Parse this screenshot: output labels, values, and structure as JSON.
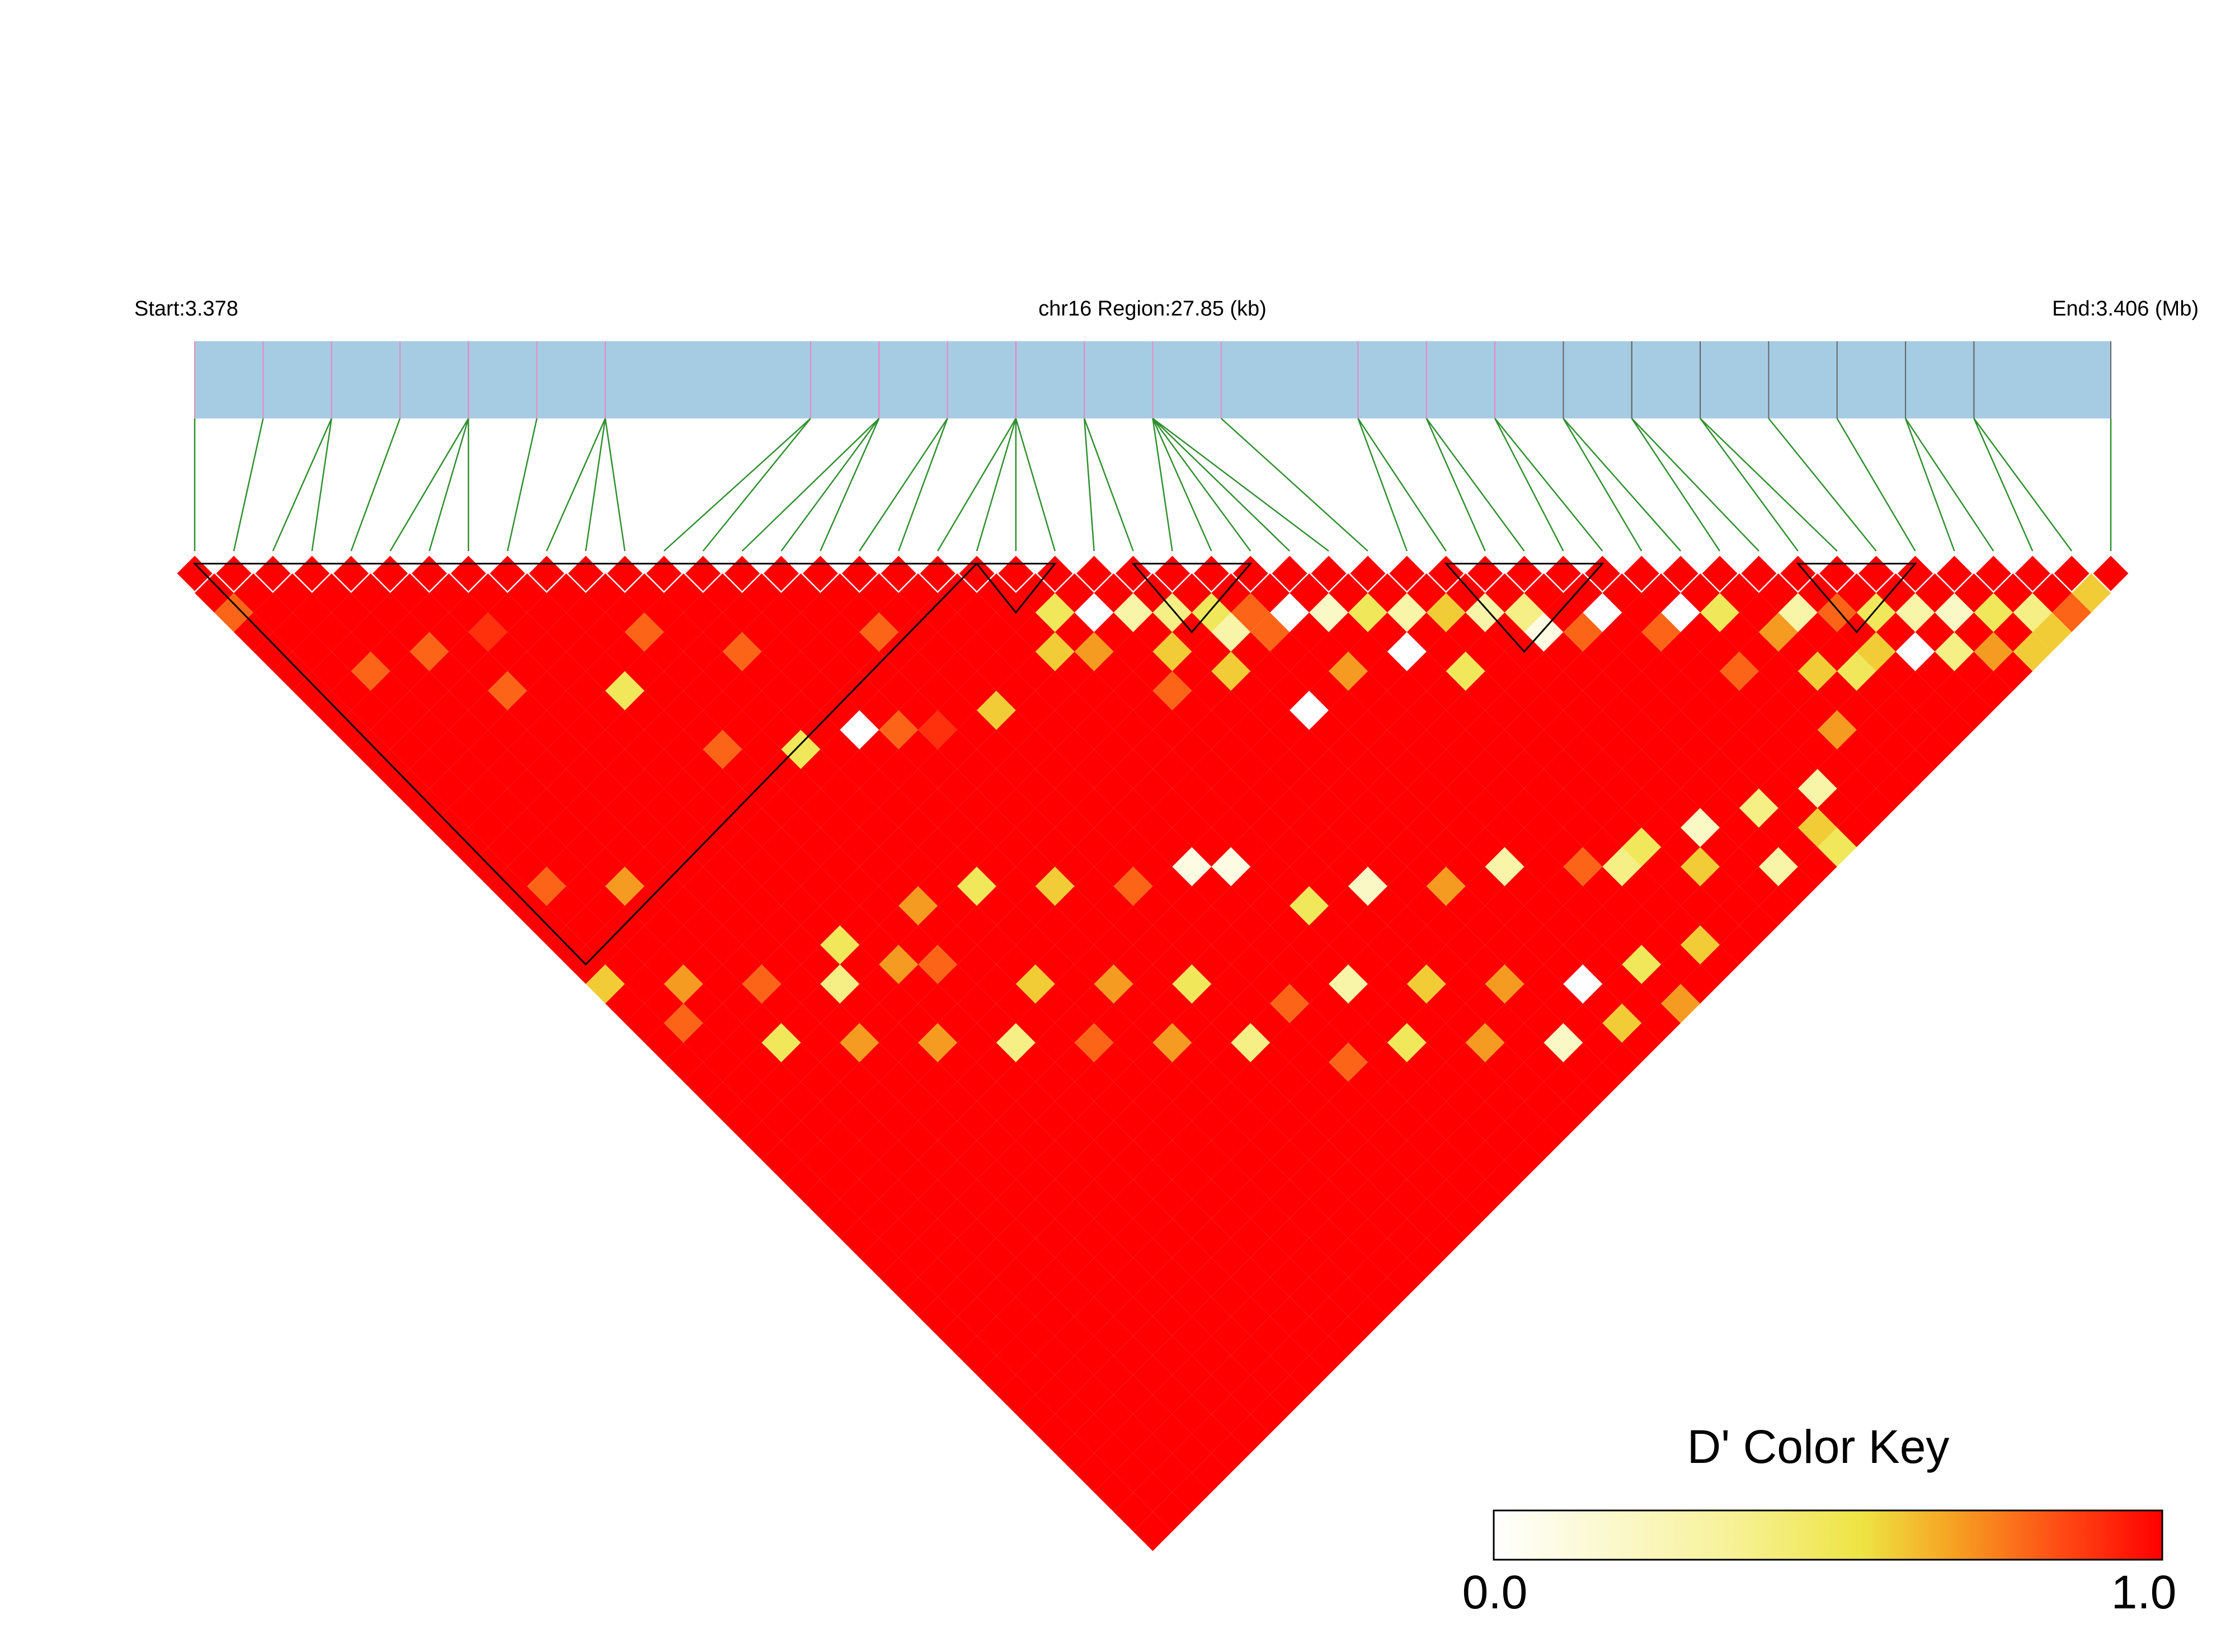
{
  "header": {
    "start_label": "Start:3.378",
    "region_label": "chr16 Region:27.85 (kb)",
    "end_label": "End:3.406 (Mb)"
  },
  "colors": {
    "track_fill": "#a6cce3",
    "snp_tick_pink": "#e889c4",
    "snp_tick_gray": "#666666",
    "connector": "#2f8f2f",
    "block_outline": "#000000",
    "scale": [
      "#ffffff",
      "#f2eb4c",
      "#f5a623",
      "#ff0000"
    ]
  },
  "chart_data": {
    "type": "heatmap",
    "title": "",
    "region": {
      "chromosome": "chr16",
      "start_mb": 3.378,
      "end_mb": 3.406,
      "length_kb": 27.85
    },
    "snp_count": 50,
    "snp_positions_mb": [
      3.378,
      3.379,
      3.38,
      3.38,
      3.381,
      3.382,
      3.382,
      3.382,
      3.383,
      3.384,
      3.384,
      3.384,
      3.387,
      3.387,
      3.388,
      3.388,
      3.388,
      3.389,
      3.389,
      3.39,
      3.39,
      3.39,
      3.39,
      3.391,
      3.391,
      3.392,
      3.392,
      3.392,
      3.392,
      3.392,
      3.393,
      3.395,
      3.395,
      3.396,
      3.396,
      3.397,
      3.397,
      3.398,
      3.398,
      3.399,
      3.399,
      3.4,
      3.4,
      3.401,
      3.402,
      3.403,
      3.403,
      3.404,
      3.404,
      3.406
    ],
    "ld_blocks": [
      {
        "first_snp": 1,
        "last_snp": 21
      },
      {
        "first_snp": 21,
        "last_snp": 23
      },
      {
        "first_snp": 25,
        "last_snp": 28
      },
      {
        "first_snp": 33,
        "last_snp": 37
      },
      {
        "first_snp": 42,
        "last_snp": 45
      }
    ],
    "color_key": {
      "title": "D' Color Key",
      "min_label": "0.0",
      "max_label": "1.0",
      "min": 0.0,
      "max": 1.0
    },
    "dprime_default": 1.0,
    "dprime_low_pairs": [
      [
        1,
        3,
        0.8
      ],
      [
        3,
        8,
        0.8
      ],
      [
        5,
        9,
        0.8
      ],
      [
        6,
        12,
        0.8
      ],
      [
        7,
        10,
        0.9
      ],
      [
        9,
        15,
        0.5
      ],
      [
        10,
        19,
        0.8
      ],
      [
        11,
        14,
        0.8
      ],
      [
        12,
        21,
        0.5
      ],
      [
        13,
        17,
        0.8
      ],
      [
        14,
        22,
        0.0
      ],
      [
        15,
        23,
        0.8
      ],
      [
        16,
        24,
        0.9
      ],
      [
        17,
        20,
        0.8
      ],
      [
        18,
        25,
        0.6
      ],
      [
        21,
        25,
        0.6
      ],
      [
        22,
        24,
        0.5
      ],
      [
        22,
        26,
        0.7
      ],
      [
        23,
        25,
        0.0
      ],
      [
        23,
        29,
        0.8
      ],
      [
        24,
        26,
        0.3
      ],
      [
        24,
        28,
        0.6
      ],
      [
        25,
        27,
        0.4
      ],
      [
        25,
        30,
        0.6
      ],
      [
        26,
        28,
        0.5
      ],
      [
        26,
        29,
        0.3
      ],
      [
        26,
        33,
        0.0
      ],
      [
        27,
        29,
        0.8
      ],
      [
        27,
        30,
        0.8
      ],
      [
        28,
        30,
        0.0
      ],
      [
        28,
        33,
        0.7
      ],
      [
        29,
        31,
        0.2
      ],
      [
        29,
        31,
        0.2
      ],
      [
        30,
        32,
        0.5
      ],
      [
        30,
        34,
        0.0
      ],
      [
        31,
        33,
        0.3
      ],
      [
        31,
        36,
        0.5
      ],
      [
        32,
        34,
        0.6
      ],
      [
        33,
        35,
        0.3
      ],
      [
        34,
        36,
        0.4
      ],
      [
        34,
        37,
        0.1
      ],
      [
        35,
        38,
        0.8
      ],
      [
        36,
        38,
        0.0
      ],
      [
        37,
        40,
        0.8
      ],
      [
        38,
        40,
        0.0
      ],
      [
        38,
        43,
        0.8
      ],
      [
        39,
        41,
        0.5
      ],
      [
        40,
        43,
        0.7
      ],
      [
        40,
        45,
        0.6
      ],
      [
        41,
        43,
        0.3
      ],
      [
        41,
        46,
        0.5
      ],
      [
        42,
        44,
        0.8
      ],
      [
        42,
        46,
        0.6
      ],
      [
        43,
        45,
        0.5
      ],
      [
        43,
        47,
        0.0
      ],
      [
        44,
        46,
        0.3
      ],
      [
        44,
        48,
        0.4
      ],
      [
        45,
        47,
        0.2
      ],
      [
        45,
        49,
        0.7
      ],
      [
        46,
        48,
        0.5
      ],
      [
        46,
        50,
        0.6
      ],
      [
        47,
        49,
        0.4
      ],
      [
        47,
        50,
        0.6
      ],
      [
        48,
        50,
        0.8
      ],
      [
        49,
        50,
        0.6
      ],
      [
        2,
        18,
        0.8
      ],
      [
        4,
        20,
        0.7
      ],
      [
        8,
        27,
        0.5
      ],
      [
        10,
        30,
        0.8
      ],
      [
        12,
        33,
        0.6
      ],
      [
        14,
        35,
        0.7
      ],
      [
        16,
        37,
        0.5
      ],
      [
        18,
        40,
        0.8
      ],
      [
        20,
        41,
        0.3
      ],
      [
        22,
        43,
        0.6
      ],
      [
        24,
        45,
        0.7
      ],
      [
        26,
        47,
        0.0
      ],
      [
        28,
        48,
        0.5
      ],
      [
        30,
        49,
        0.6
      ],
      [
        19,
        34,
        0.1
      ],
      [
        20,
        35,
        0.1
      ],
      [
        21,
        38,
        0.5
      ],
      [
        23,
        39,
        0.2
      ],
      [
        25,
        41,
        0.7
      ],
      [
        27,
        42,
        0.3
      ],
      [
        29,
        44,
        0.8
      ],
      [
        31,
        45,
        0.5
      ],
      [
        33,
        46,
        0.2
      ],
      [
        35,
        47,
        0.4
      ],
      [
        36,
        49,
        0.6
      ],
      [
        37,
        48,
        0.3
      ],
      [
        39,
        47,
        0.7
      ],
      [
        15,
        31,
        0.6
      ],
      [
        17,
        33,
        0.8
      ],
      [
        11,
        28,
        0.7
      ],
      [
        13,
        29,
        0.5
      ],
      [
        5,
        26,
        0.8
      ],
      [
        7,
        28,
        0.4
      ],
      [
        9,
        29,
        0.7
      ],
      [
        3,
        24,
        0.7
      ],
      [
        1,
        22,
        0.6
      ],
      [
        2,
        25,
        0.8
      ],
      [
        6,
        30,
        0.7
      ],
      [
        4,
        28,
        0.5
      ],
      [
        8,
        32,
        0.7
      ],
      [
        10,
        34,
        0.4
      ],
      [
        12,
        36,
        0.8
      ],
      [
        14,
        38,
        0.7
      ],
      [
        16,
        40,
        0.4
      ],
      [
        18,
        43,
        0.8
      ],
      [
        20,
        44,
        0.5
      ],
      [
        22,
        46,
        0.7
      ],
      [
        24,
        48,
        0.2
      ],
      [
        26,
        49,
        0.6
      ],
      [
        28,
        50,
        0.7
      ],
      [
        30,
        45,
        0.4
      ],
      [
        32,
        47,
        0.6
      ],
      [
        34,
        49,
        0.3
      ],
      [
        36,
        50,
        0.5
      ]
    ]
  }
}
